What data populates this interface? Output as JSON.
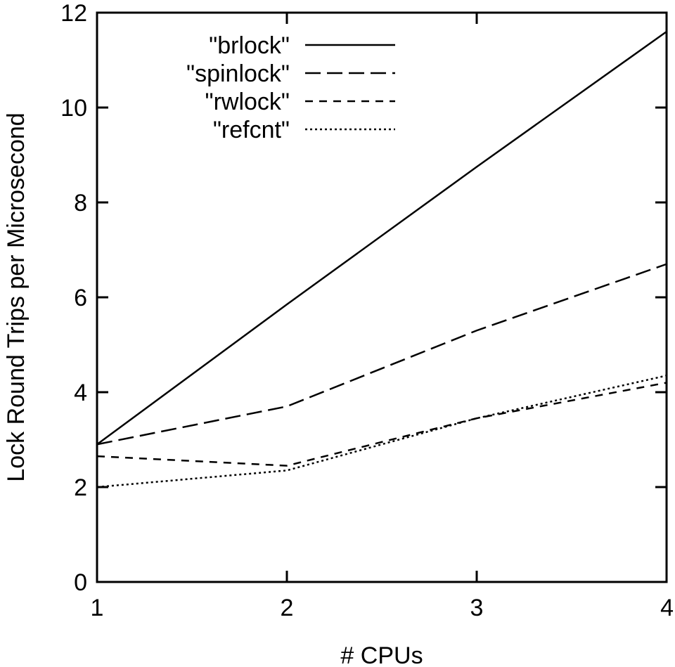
{
  "chart_data": {
    "type": "line",
    "title": "",
    "xlabel": "# CPUs",
    "ylabel": "Lock Round Trips per Microsecond",
    "xlim": [
      1,
      4
    ],
    "ylim": [
      0,
      12
    ],
    "xticks": [
      1,
      2,
      3,
      4
    ],
    "yticks": [
      0,
      2,
      4,
      6,
      8,
      10,
      12
    ],
    "grid": false,
    "legend_position": "top-left",
    "x": [
      1,
      2,
      3,
      4
    ],
    "series": [
      {
        "name": "\"brlock\"",
        "dash": "solid",
        "values": [
          2.9,
          5.85,
          8.75,
          11.6
        ]
      },
      {
        "name": "\"spinlock\"",
        "dash": "long-dash",
        "values": [
          2.9,
          3.7,
          5.3,
          6.7
        ]
      },
      {
        "name": "\"rwlock\"",
        "dash": "short-dash",
        "values": [
          2.65,
          2.45,
          3.45,
          4.2
        ]
      },
      {
        "name": "\"refcnt\"",
        "dash": "dotted",
        "values": [
          2.0,
          2.35,
          3.45,
          4.35
        ]
      }
    ]
  }
}
